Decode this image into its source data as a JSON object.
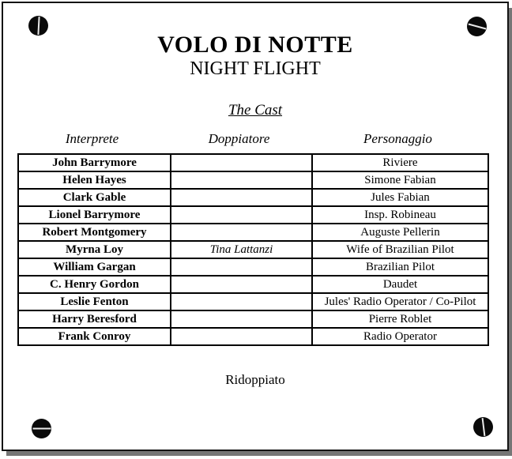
{
  "colors": {
    "text": "#000000",
    "page_background": "#ffffff",
    "page_border": "#141414",
    "page_shadow": "#767676",
    "screw_fill": "#0a0a0a",
    "screw_slot": "#e9e9e9"
  },
  "header": {
    "title_italian": "VOLO DI NOTTE",
    "title_english": "NIGHT FLIGHT"
  },
  "cast_section": {
    "heading": "The Cast",
    "columns": [
      {
        "label": "Interprete"
      },
      {
        "label": "Doppiatore"
      },
      {
        "label": "Personaggio"
      }
    ],
    "rows": [
      {
        "interprete": "John Barrymore",
        "doppiatore": "",
        "personaggio": "Riviere"
      },
      {
        "interprete": "Helen Hayes",
        "doppiatore": "",
        "personaggio": "Simone Fabian"
      },
      {
        "interprete": "Clark Gable",
        "doppiatore": "",
        "personaggio": "Jules Fabian"
      },
      {
        "interprete": "Lionel Barrymore",
        "doppiatore": "",
        "personaggio": "Insp. Robineau"
      },
      {
        "interprete": "Robert Montgomery",
        "doppiatore": "",
        "personaggio": "Auguste Pellerin"
      },
      {
        "interprete": "Myrna Loy",
        "doppiatore": "Tina Lattanzi",
        "personaggio": "Wife of Brazilian Pilot"
      },
      {
        "interprete": "William Gargan",
        "doppiatore": "",
        "personaggio": "Brazilian Pilot"
      },
      {
        "interprete": "C. Henry Gordon",
        "doppiatore": "",
        "personaggio": "Daudet"
      },
      {
        "interprete": "Leslie Fenton",
        "doppiatore": "",
        "personaggio": "Jules' Radio Operator / Co-Pilot"
      },
      {
        "interprete": "Harry Beresford",
        "doppiatore": "",
        "personaggio": "Pierre Roblet"
      },
      {
        "interprete": "Frank Conroy",
        "doppiatore": "",
        "personaggio": "Radio Operator"
      }
    ]
  },
  "footer": {
    "note": "Ridoppiato"
  },
  "decorations": {
    "icons": [
      "screw-top-left-icon",
      "screw-top-right-icon",
      "screw-bottom-left-icon",
      "screw-bottom-right-icon"
    ]
  }
}
